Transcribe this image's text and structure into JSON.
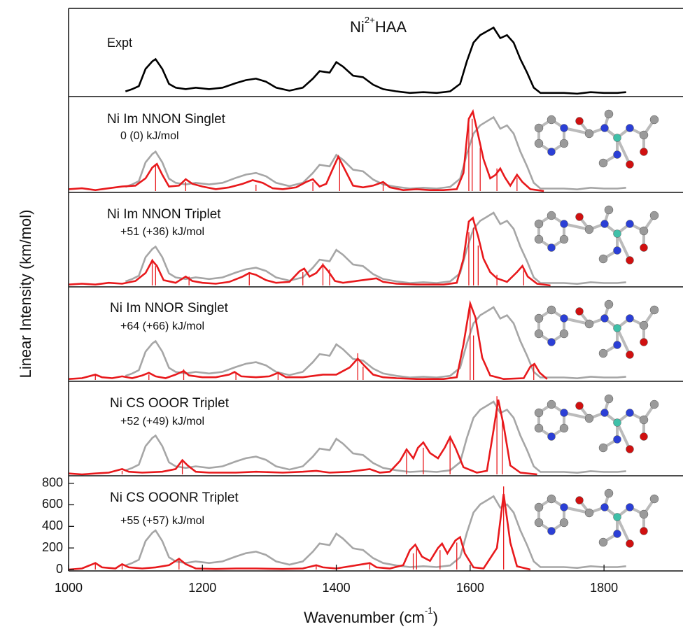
{
  "chart_data": [
    {
      "type": "line",
      "title": {
        "base": "Ni",
        "sup": "2+",
        "rest": "HAA"
      },
      "annotation": "Expt",
      "xlim": [
        1000,
        1918
      ],
      "ylim": [
        0,
        110
      ],
      "curve": {
        "color": "#000000",
        "x": [
          1085,
          1095,
          1105,
          1115,
          1125,
          1130,
          1140,
          1150,
          1160,
          1175,
          1190,
          1210,
          1230,
          1250,
          1265,
          1280,
          1295,
          1310,
          1330,
          1350,
          1365,
          1375,
          1390,
          1400,
          1410,
          1425,
          1440,
          1455,
          1470,
          1490,
          1510,
          1530,
          1550,
          1570,
          1585,
          1595,
          1605,
          1615,
          1625,
          1635,
          1645,
          1655,
          1665,
          1675,
          1685,
          1695,
          1705,
          1720,
          1740,
          1760,
          1780,
          1800,
          1820,
          1833
        ],
        "values": [
          5,
          8,
          12,
          35,
          45,
          48,
          35,
          15,
          10,
          8,
          10,
          8,
          10,
          16,
          20,
          22,
          18,
          10,
          6,
          10,
          22,
          32,
          30,
          44,
          38,
          26,
          24,
          14,
          8,
          5,
          3,
          4,
          3,
          5,
          15,
          45,
          70,
          80,
          85,
          90,
          76,
          80,
          70,
          48,
          30,
          10,
          3,
          3,
          3,
          2,
          4,
          3,
          3,
          4
        ]
      }
    },
    {
      "type": "line",
      "annotation": "Ni Im NNON Singlet",
      "energy": "0 (0) kJ/mol",
      "xlim": [
        1000,
        1918
      ],
      "ylim": [
        0,
        100
      ],
      "reference_color": "#a6a6a6",
      "curve": {
        "color": "#e8191c",
        "x": [
          1000,
          1020,
          1040,
          1060,
          1080,
          1100,
          1115,
          1125,
          1132,
          1140,
          1150,
          1165,
          1175,
          1185,
          1200,
          1220,
          1240,
          1260,
          1275,
          1290,
          1305,
          1320,
          1340,
          1355,
          1365,
          1375,
          1385,
          1395,
          1403,
          1412,
          1425,
          1440,
          1455,
          1470,
          1480,
          1500,
          1520,
          1540,
          1560,
          1580,
          1590,
          1598,
          1604,
          1612,
          1620,
          1630,
          1638,
          1645,
          1652,
          1660,
          1670,
          1678,
          1690,
          1710
        ],
        "values": [
          2,
          3,
          1,
          3,
          5,
          6,
          14,
          26,
          30,
          18,
          5,
          6,
          13,
          8,
          5,
          2,
          4,
          8,
          12,
          9,
          3,
          2,
          4,
          10,
          13,
          5,
          8,
          25,
          38,
          25,
          6,
          4,
          6,
          10,
          4,
          1,
          2,
          1,
          1,
          2,
          20,
          80,
          88,
          62,
          35,
          14,
          18,
          25,
          15,
          6,
          18,
          10,
          2,
          0
        ]
      },
      "sticks": {
        "color": "#e8191c",
        "x": [
          1130,
          1175,
          1280,
          1365,
          1405,
          1470,
          1598,
          1603,
          1615,
          1640,
          1670
        ],
        "values": [
          30,
          10,
          7,
          10,
          35,
          8,
          75,
          80,
          48,
          25,
          15
        ]
      }
    },
    {
      "type": "line",
      "annotation": "Ni Im NNON Triplet",
      "energy": "+51 (+36) kJ/mol",
      "xlim": [
        1000,
        1918
      ],
      "ylim": [
        0,
        100
      ],
      "reference_color": "#a6a6a6",
      "curve": {
        "color": "#e8191c",
        "x": [
          1000,
          1020,
          1040,
          1060,
          1080,
          1100,
          1115,
          1125,
          1132,
          1142,
          1160,
          1175,
          1185,
          1200,
          1220,
          1240,
          1260,
          1270,
          1280,
          1295,
          1310,
          1330,
          1345,
          1352,
          1360,
          1370,
          1380,
          1388,
          1398,
          1410,
          1430,
          1450,
          1460,
          1470,
          1490,
          1520,
          1560,
          1580,
          1590,
          1598,
          1604,
          1612,
          1620,
          1630,
          1640,
          1655,
          1670,
          1678,
          1686,
          1700,
          1720
        ],
        "values": [
          1,
          2,
          1,
          3,
          2,
          5,
          14,
          28,
          22,
          6,
          3,
          10,
          5,
          3,
          2,
          4,
          10,
          14,
          12,
          6,
          3,
          4,
          16,
          19,
          10,
          14,
          23,
          16,
          5,
          3,
          5,
          7,
          8,
          4,
          2,
          1,
          1,
          3,
          30,
          72,
          76,
          55,
          30,
          15,
          8,
          4,
          15,
          22,
          10,
          2,
          0
        ]
      },
      "sticks": {
        "color": "#e8191c",
        "x": [
          1125,
          1130,
          1180,
          1270,
          1350,
          1380,
          1390,
          1598,
          1605,
          1612,
          1640,
          1680
        ],
        "values": [
          30,
          22,
          10,
          14,
          15,
          25,
          18,
          60,
          65,
          45,
          12,
          20
        ]
      }
    },
    {
      "type": "line",
      "annotation": "Ni Im NNOR Singlet",
      "energy": "+64 (+66) kJ/mol",
      "xlim": [
        1000,
        1918
      ],
      "ylim": [
        0,
        100
      ],
      "reference_color": "#a6a6a6",
      "curve": {
        "color": "#e8191c",
        "x": [
          1000,
          1020,
          1040,
          1050,
          1065,
          1080,
          1095,
          1110,
          1120,
          1130,
          1145,
          1160,
          1172,
          1180,
          1200,
          1220,
          1240,
          1248,
          1258,
          1280,
          1300,
          1313,
          1325,
          1350,
          1380,
          1400,
          1420,
          1432,
          1442,
          1455,
          1470,
          1490,
          1520,
          1560,
          1580,
          1590,
          1600,
          1608,
          1618,
          1630,
          1650,
          1680,
          1690,
          1696,
          1704,
          1715
        ],
        "values": [
          1,
          2,
          6,
          3,
          2,
          4,
          2,
          5,
          8,
          4,
          2,
          6,
          10,
          5,
          3,
          3,
          6,
          9,
          4,
          3,
          4,
          8,
          3,
          3,
          6,
          6,
          14,
          24,
          16,
          6,
          3,
          2,
          1,
          1,
          3,
          40,
          86,
          70,
          25,
          5,
          1,
          2,
          15,
          18,
          8,
          1
        ]
      },
      "sticks": {
        "color": "#e8191c",
        "x": [
          1040,
          1120,
          1172,
          1250,
          1313,
          1432,
          1440,
          1600,
          1605,
          1695
        ],
        "values": [
          6,
          6,
          12,
          8,
          8,
          30,
          15,
          85,
          50,
          18
        ]
      }
    },
    {
      "type": "line",
      "annotation": "Ni CS OOOR Triplet",
      "energy": "+52 (+49) kJ/mol",
      "xlim": [
        1000,
        1918
      ],
      "ylim": [
        0,
        100
      ],
      "reference_color": "#a6a6a6",
      "curve": {
        "color": "#e8191c",
        "x": [
          1000,
          1020,
          1040,
          1060,
          1080,
          1090,
          1110,
          1140,
          1160,
          1170,
          1178,
          1190,
          1210,
          1250,
          1280,
          1320,
          1350,
          1370,
          1390,
          1420,
          1450,
          1465,
          1480,
          1495,
          1505,
          1515,
          1522,
          1530,
          1540,
          1552,
          1562,
          1570,
          1578,
          1590,
          1610,
          1625,
          1635,
          1642,
          1650,
          1660,
          1675,
          1700
        ],
        "values": [
          1,
          0,
          1,
          2,
          6,
          3,
          2,
          3,
          6,
          16,
          10,
          3,
          2,
          2,
          3,
          2,
          3,
          4,
          2,
          3,
          6,
          2,
          3,
          15,
          28,
          18,
          30,
          36,
          24,
          18,
          30,
          42,
          30,
          8,
          2,
          4,
          50,
          84,
          55,
          10,
          2,
          0
        ]
      },
      "sticks": {
        "color": "#e8191c",
        "x": [
          1080,
          1170,
          1505,
          1530,
          1570,
          1640,
          1648
        ],
        "values": [
          4,
          14,
          25,
          30,
          40,
          88,
          60
        ]
      }
    },
    {
      "type": "line",
      "annotation": "Ni CS OOONR Triplet",
      "energy": "+55 (+57) kJ/mol",
      "xlim": [
        1000,
        1918
      ],
      "ylim": [
        0,
        830
      ],
      "reference_color": "#a6a6a6",
      "xticks": [
        1000,
        1200,
        1400,
        1600,
        1800
      ],
      "yticks": [
        0,
        200,
        400,
        600,
        800
      ],
      "xlabel": {
        "base": "Wavenumber  (cm",
        "sup": "-1",
        "rest": ")"
      },
      "ylabel": "Linear Intensity  (km/mol)",
      "curve": {
        "color": "#e8191c",
        "x": [
          1000,
          1020,
          1040,
          1050,
          1070,
          1080,
          1090,
          1110,
          1130,
          1150,
          1165,
          1175,
          1190,
          1220,
          1250,
          1280,
          1320,
          1350,
          1370,
          1380,
          1400,
          1440,
          1450,
          1460,
          1480,
          1500,
          1510,
          1518,
          1528,
          1540,
          1552,
          1558,
          1566,
          1578,
          1585,
          1592,
          1605,
          1620,
          1640,
          1650,
          1660,
          1670,
          1690
        ],
        "values": [
          0,
          10,
          60,
          20,
          10,
          50,
          20,
          10,
          20,
          40,
          100,
          50,
          10,
          5,
          10,
          10,
          5,
          10,
          40,
          20,
          10,
          50,
          60,
          20,
          10,
          40,
          180,
          230,
          120,
          80,
          200,
          240,
          150,
          270,
          300,
          150,
          20,
          10,
          200,
          700,
          250,
          30,
          0
        ]
      },
      "sticks": {
        "color": "#e8191c",
        "x": [
          1040,
          1080,
          1165,
          1370,
          1450,
          1515,
          1520,
          1555,
          1580,
          1650
        ],
        "values": [
          60,
          40,
          100,
          40,
          60,
          150,
          200,
          180,
          250,
          770
        ]
      }
    }
  ]
}
